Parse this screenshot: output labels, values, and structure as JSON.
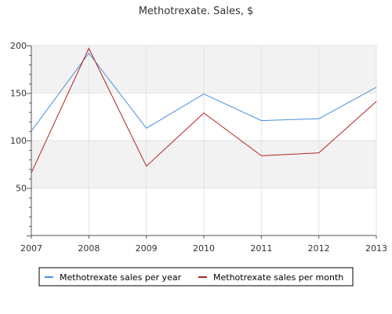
{
  "chart_data": {
    "type": "line",
    "title": "Methotrexate. Sales, $",
    "xlabel": "",
    "ylabel": "",
    "x": [
      "2007",
      "2008",
      "2009",
      "2010",
      "2011",
      "2012",
      "2013"
    ],
    "y_ticks": [
      "50",
      "100",
      "150",
      "200"
    ],
    "ylim": [
      0,
      200
    ],
    "grid": true,
    "legend_position": "bottom",
    "series": [
      {
        "name": "Methotrexate sales per year",
        "color": "#4a90d9",
        "values": [
          110,
          192,
          113,
          149,
          121,
          123,
          156
        ]
      },
      {
        "name": "Methotrexate sales per month",
        "color": "#b22222",
        "values": [
          66,
          197,
          73,
          129,
          84,
          87,
          141
        ]
      }
    ]
  }
}
